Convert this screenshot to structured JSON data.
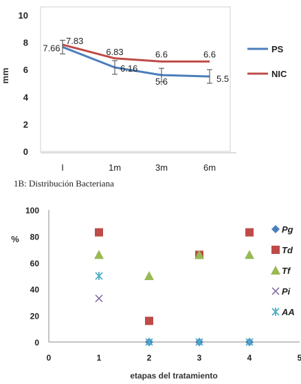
{
  "caption": "1B: Distribución Bacteriana",
  "chart_data": [
    {
      "type": "line",
      "title": "",
      "xlabel": "",
      "ylabel": "mm",
      "categories": [
        "I",
        "1m",
        "3m",
        "6m"
      ],
      "ylim": [
        0,
        10
      ],
      "yticks": [
        0,
        2,
        4,
        6,
        8,
        10
      ],
      "grid": false,
      "legend_position": "right",
      "series": [
        {
          "name": "PS",
          "color": "#4a7ebb",
          "values": [
            7.66,
            6.16,
            5.6,
            5.5
          ],
          "labels": [
            "7.66",
            "6.16",
            "5.6",
            "5.5"
          ],
          "error": [
            0.5,
            0.5,
            0.5,
            0.5
          ]
        },
        {
          "name": "NIC",
          "color": "#be4b48",
          "values": [
            7.83,
            6.83,
            6.6,
            6.6
          ],
          "labels": [
            "7.83",
            "6.83",
            "6.6",
            "6.6"
          ]
        }
      ]
    },
    {
      "type": "scatter",
      "title": "",
      "xlabel": "etapas del tratamiento",
      "ylabel": "%",
      "xlim": [
        0,
        5
      ],
      "ylim": [
        0,
        100
      ],
      "xticks": [
        0,
        1,
        2,
        3,
        4,
        5
      ],
      "yticks": [
        0,
        20,
        40,
        60,
        80,
        100
      ],
      "grid": false,
      "legend_position": "right",
      "series": [
        {
          "name": "Pg",
          "marker": "diamond",
          "color": "#4a7ebb",
          "points": [
            [
              2,
              0
            ],
            [
              3,
              0
            ],
            [
              4,
              0
            ]
          ]
        },
        {
          "name": "Td",
          "marker": "square",
          "color": "#be4b48",
          "points": [
            [
              1,
              83
            ],
            [
              2,
              16
            ],
            [
              3,
              66
            ],
            [
              4,
              83
            ]
          ]
        },
        {
          "name": "Tf",
          "marker": "triangle",
          "color": "#98b954",
          "points": [
            [
              1,
              66
            ],
            [
              2,
              50
            ],
            [
              3,
              66
            ],
            [
              4,
              66
            ]
          ]
        },
        {
          "name": "Pi",
          "marker": "x",
          "color": "#7d60a0",
          "points": [
            [
              1,
              33
            ]
          ]
        },
        {
          "name": "AA",
          "marker": "star",
          "color": "#4bacc6",
          "points": [
            [
              1,
              50
            ],
            [
              2,
              0
            ],
            [
              3,
              0
            ],
            [
              4,
              0
            ]
          ]
        }
      ]
    }
  ]
}
